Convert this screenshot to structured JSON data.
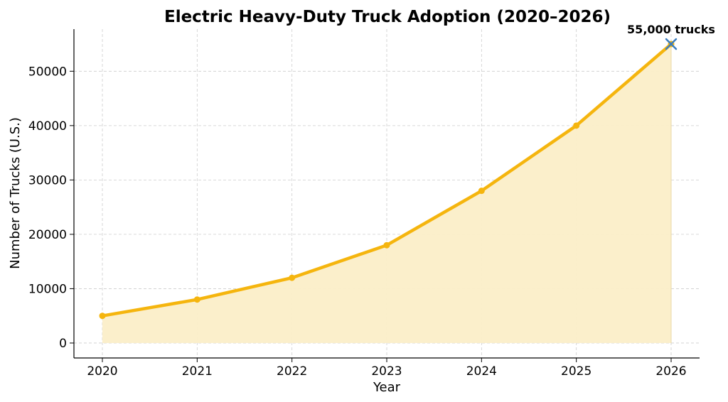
{
  "chart_data": {
    "type": "area",
    "title": "Electric Heavy-Duty Truck Adoption (2020–2026)",
    "xlabel": "Year",
    "ylabel": "Number of Trucks (U.S.)",
    "x": [
      2020,
      2021,
      2022,
      2023,
      2024,
      2025,
      2026
    ],
    "x_tick_labels": [
      "2020",
      "2021",
      "2022",
      "2023",
      "2024",
      "2025",
      "2026"
    ],
    "series": [
      {
        "values": [
          5000,
          8000,
          12000,
          18000,
          28000,
          40000,
          55000
        ],
        "color": "#f5b50e",
        "fill_color": "#fbeec8"
      }
    ],
    "y_ticks": [
      0,
      10000,
      20000,
      30000,
      40000,
      50000
    ],
    "y_tick_labels": [
      "0",
      "10000",
      "20000",
      "30000",
      "40000",
      "50000"
    ],
    "xlim": [
      2019.7,
      2026.3
    ],
    "ylim": [
      -2750,
      57750
    ],
    "grid": true,
    "annotations": [
      {
        "text": "55,000 trucks",
        "x": 2026,
        "y": 55000,
        "marker": "x",
        "marker_color": "#3a7dbf"
      }
    ]
  }
}
